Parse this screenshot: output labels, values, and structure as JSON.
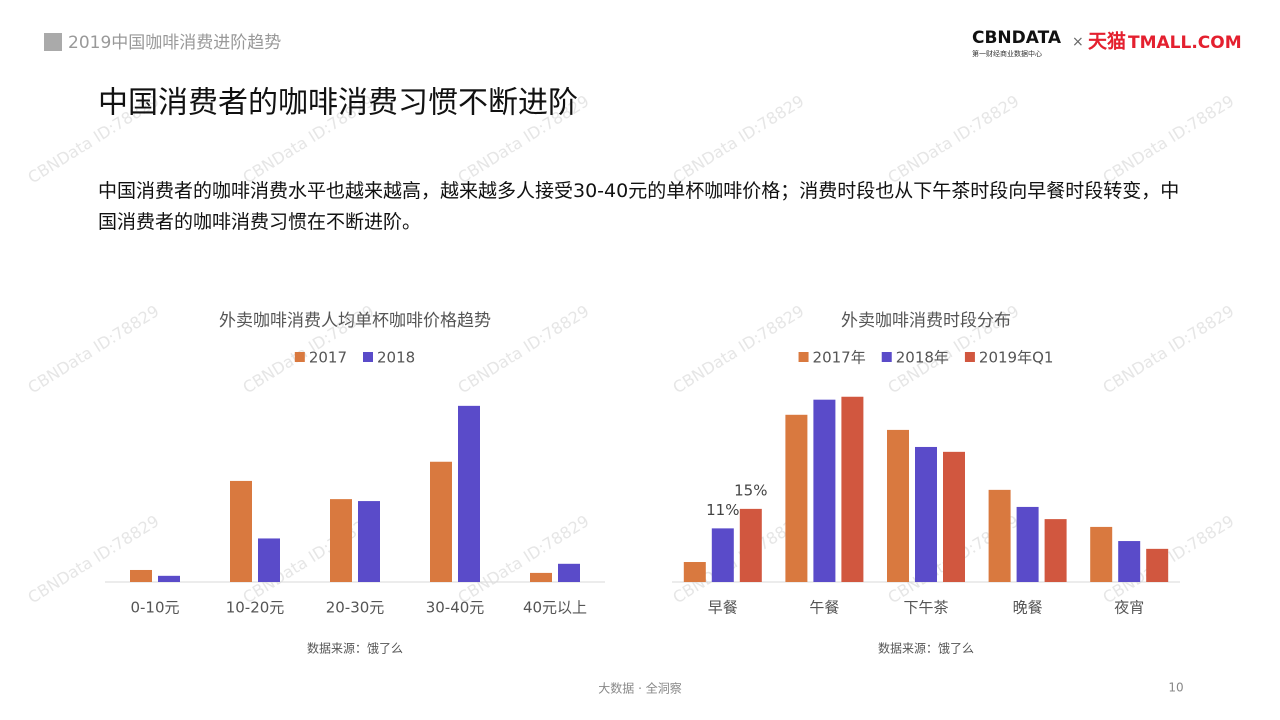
{
  "header": {
    "section": "2019中国咖啡消费进阶趋势",
    "logo_main": "CBNDATA",
    "logo_sub": "第一财经商业数据中心",
    "logo_times": "×",
    "logo_tmall_cn": "天猫",
    "logo_tmall_en": "TMALL.COM"
  },
  "title": "中国消费者的咖啡消费习惯不断进阶",
  "description": "中国消费者的咖啡消费水平也越来越高，越来越多人接受30-40元的单杯咖啡价格；消费时段也从下午茶时段向早餐时段转变，中国消费者的咖啡消费习惯在不断进阶。",
  "watermark": "CBNData ID:78829",
  "footer": {
    "slogan": "大数据 · 全洞察",
    "page": "10"
  },
  "chart_data": [
    {
      "type": "bar",
      "title": "外卖咖啡消费人均单杯咖啡价格趋势",
      "categories": [
        "0-10元",
        "10-20元",
        "20-30元",
        "30-40元",
        "40元以上"
      ],
      "series": [
        {
          "name": "2017",
          "color": "#d9793f",
          "values": [
            3.7,
            31.1,
            25.5,
            37.0,
            2.8
          ]
        },
        {
          "name": "2018",
          "color": "#5a4bc9",
          "values": [
            1.9,
            13.4,
            24.9,
            54.2,
            5.6
          ]
        }
      ],
      "ylim": [
        0,
        60
      ],
      "source": "数据来源：饿了么"
    },
    {
      "type": "bar",
      "title": "外卖咖啡消费时段分布",
      "categories": [
        "早餐",
        "午餐",
        "下午茶",
        "晚餐",
        "夜宵"
      ],
      "series": [
        {
          "name": "2017年",
          "color": "#d9793f",
          "values": [
            4.1,
            34.3,
            31.2,
            18.9,
            11.3
          ]
        },
        {
          "name": "2018年",
          "color": "#5a4bc9",
          "values": [
            11,
            37.4,
            27.7,
            15.4,
            8.4
          ],
          "value_labels": [
            "11%",
            null,
            null,
            null,
            null
          ]
        },
        {
          "name": "2019年Q1",
          "color": "#d1573f",
          "values": [
            15,
            38,
            26.7,
            12.9,
            6.8
          ],
          "value_labels": [
            "15%",
            null,
            null,
            null,
            null
          ]
        }
      ],
      "ylim": [
        0,
        40
      ],
      "source": "数据来源：饿了么"
    }
  ]
}
